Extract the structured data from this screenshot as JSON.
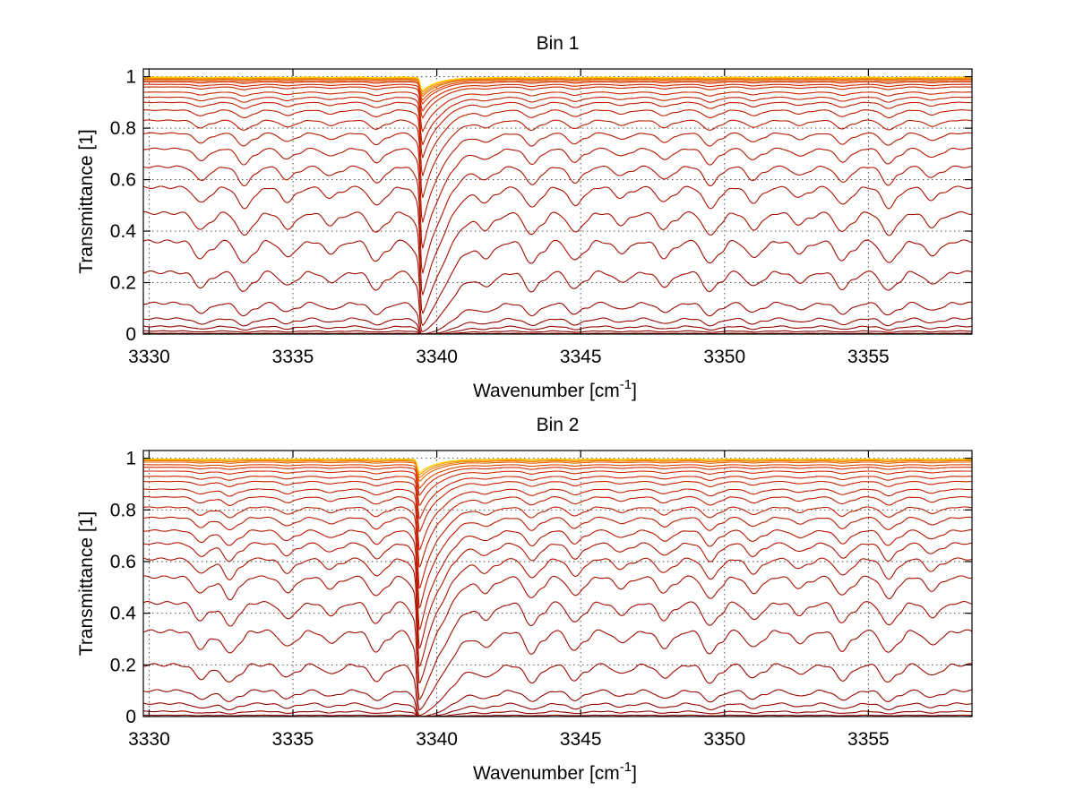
{
  "chart_data": [
    {
      "type": "line",
      "title": "Bin 1",
      "xlabel": "Wavenumber [cm",
      "xlabel_sup": "-1",
      "xlabel_suffix": "]",
      "ylabel": "Transmittance [1]",
      "xlim": [
        3329.8,
        3358.6
      ],
      "ylim": [
        0,
        1.03
      ],
      "xticks": [
        3330,
        3335,
        3340,
        3345,
        3350,
        3355
      ],
      "xtick_labels": [
        "3330",
        "3335",
        "3340",
        "3345",
        "3350",
        "3355"
      ],
      "yticks": [
        0,
        0.2,
        0.4,
        0.6,
        0.8,
        1
      ],
      "ytick_labels": [
        "0",
        "0.2",
        "0.4",
        "0.6",
        "0.8",
        "1"
      ],
      "grid": true,
      "series_description": "family of transmittance spectra, one per layer, colored dark red (lowest) to yellow (highest)",
      "baseline_levels": [
        0.003,
        0.012,
        0.03,
        0.06,
        0.12,
        0.24,
        0.36,
        0.47,
        0.57,
        0.65,
        0.72,
        0.78,
        0.83,
        0.87,
        0.9,
        0.92,
        0.94,
        0.96,
        0.97,
        0.98,
        0.985,
        0.99,
        0.993,
        0.996,
        0.998
      ],
      "absorption_lines_x": [
        3331.8,
        3333.3,
        3334.8,
        3336.3,
        3337.9,
        3339.5,
        3340.2,
        3341.7,
        3343.3,
        3344.8,
        3346.4,
        3347.9,
        3349.5,
        3351.0,
        3352.6,
        3354.1,
        3355.7,
        3357.2
      ],
      "strong_line_x": 3339.5,
      "colors": {
        "low": "#8b0000",
        "mid": "#d42a00",
        "high": "#ffb300",
        "top": "#ffd700"
      }
    },
    {
      "type": "line",
      "title": "Bin 2",
      "xlabel": "Wavenumber [cm",
      "xlabel_sup": "-1",
      "xlabel_suffix": "]",
      "ylabel": "Transmittance [1]",
      "xlim": [
        3329.8,
        3358.6
      ],
      "ylim": [
        0,
        1.03
      ],
      "xticks": [
        3330,
        3335,
        3340,
        3345,
        3350,
        3355
      ],
      "xtick_labels": [
        "3330",
        "3335",
        "3340",
        "3345",
        "3350",
        "3355"
      ],
      "yticks": [
        0,
        0.2,
        0.4,
        0.6,
        0.8,
        1
      ],
      "ytick_labels": [
        "0",
        "0.2",
        "0.4",
        "0.6",
        "0.8",
        "1"
      ],
      "grid": true,
      "series_description": "family of transmittance spectra, one per layer, colored dark red (lowest) to yellow (highest)",
      "baseline_levels": [
        0.005,
        0.02,
        0.05,
        0.1,
        0.2,
        0.33,
        0.44,
        0.54,
        0.61,
        0.67,
        0.72,
        0.77,
        0.81,
        0.85,
        0.88,
        0.91,
        0.93,
        0.95,
        0.965,
        0.975,
        0.985,
        0.99,
        0.994,
        0.997
      ],
      "absorption_lines_x": [
        3331.8,
        3332.8,
        3334.8,
        3336.3,
        3337.9,
        3339.4,
        3340.2,
        3341.7,
        3343.3,
        3344.8,
        3346.4,
        3347.9,
        3349.5,
        3351.0,
        3352.6,
        3354.1,
        3355.7,
        3357.2
      ],
      "strong_line_x": 3339.4,
      "colors": {
        "low": "#8b0000",
        "mid": "#d42a00",
        "high": "#ffb300",
        "top": "#ffd700"
      }
    }
  ]
}
